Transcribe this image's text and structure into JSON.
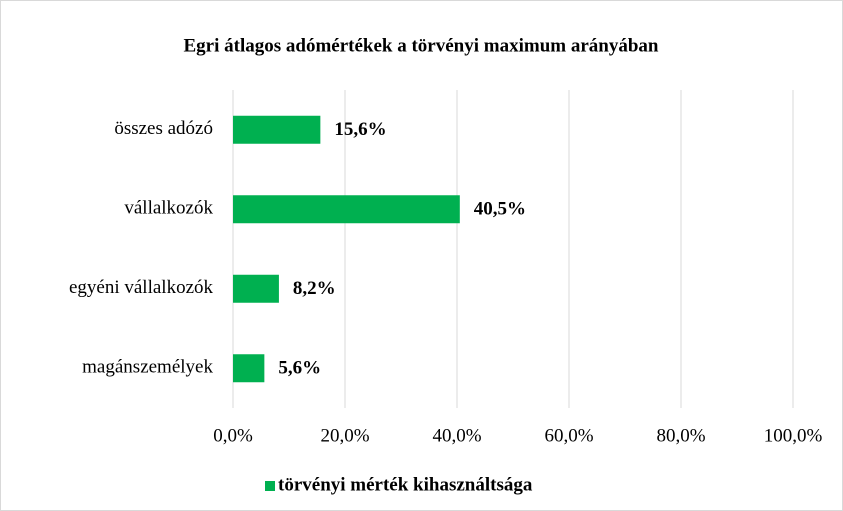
{
  "chart_data": {
    "type": "barh",
    "title": "Egri átlagos adómértékek a törvényi maximum arányában",
    "categories": [
      "összes adózó",
      "vállalkozók",
      "egyéni vállalkozók",
      "magánszemélyek"
    ],
    "series": [
      {
        "name": "törvényi mérték kihasználtsága",
        "color": "#00b050",
        "values": [
          15.6,
          40.5,
          8.2,
          5.6
        ],
        "value_labels": [
          "15,6%",
          "40,5%",
          "8,2%",
          "5,6%"
        ]
      }
    ],
    "xlim": [
      0,
      100
    ],
    "xticks": [
      {
        "value": 0,
        "label": "0,0%"
      },
      {
        "value": 20,
        "label": "20,0%"
      },
      {
        "value": 40,
        "label": "40,0%"
      },
      {
        "value": 60,
        "label": "60,0%"
      },
      {
        "value": 80,
        "label": "80,0%"
      },
      {
        "value": 100,
        "label": "100,0%"
      }
    ],
    "grid": true,
    "legend": "bottom"
  }
}
